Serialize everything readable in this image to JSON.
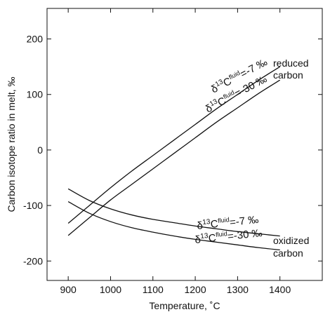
{
  "chart_data": {
    "type": "line",
    "xlabel": "Temperature, ˚C",
    "ylabel": "Carbon isotope ratio in melt, ‰",
    "xlim": [
      850,
      1500
    ],
    "ylim": [
      -235,
      255
    ],
    "x_ticks": [
      900,
      1000,
      1100,
      1200,
      1300,
      1400
    ],
    "y_ticks": [
      -200,
      -100,
      0,
      100,
      200
    ],
    "grid": false,
    "legend": "none",
    "series": [
      {
        "group": "reduced carbon",
        "fluid_label": "-7 ‰",
        "x": [
          900,
          950,
          1000,
          1050,
          1100,
          1150,
          1200,
          1250,
          1300,
          1350,
          1400
        ],
        "y": [
          -132,
          -100,
          -68,
          -38,
          -10,
          18,
          46,
          74,
          100,
          126,
          150
        ]
      },
      {
        "group": "reduced carbon",
        "fluid_label": "-30 ‰",
        "x": [
          900,
          950,
          1000,
          1050,
          1100,
          1150,
          1200,
          1250,
          1300,
          1350,
          1400
        ],
        "y": [
          -154,
          -122,
          -90,
          -62,
          -34,
          -6,
          22,
          50,
          76,
          102,
          126
        ]
      },
      {
        "group": "oxidized carbon",
        "fluid_label": "-7 ‰",
        "x": [
          900,
          950,
          1000,
          1050,
          1100,
          1150,
          1200,
          1250,
          1300,
          1350,
          1400
        ],
        "y": [
          -70,
          -91,
          -106,
          -117,
          -125,
          -131,
          -137,
          -142,
          -147,
          -151,
          -155
        ]
      },
      {
        "group": "oxidized carbon",
        "fluid_label": "-30 ‰",
        "x": [
          900,
          950,
          1000,
          1050,
          1100,
          1150,
          1200,
          1250,
          1300,
          1350,
          1400
        ],
        "y": [
          -93,
          -114,
          -129,
          -140,
          -148,
          -155,
          -161,
          -166,
          -171,
          -176,
          -180
        ]
      }
    ],
    "annotations": {
      "reduced_group": [
        "reduced",
        "carbon"
      ],
      "oxidized_group": [
        "oxidized",
        "carbon"
      ],
      "label_prefix": "δ",
      "label_iso": "13",
      "label_element": "C",
      "label_sub": "fluid",
      "label_eq": "="
    }
  }
}
